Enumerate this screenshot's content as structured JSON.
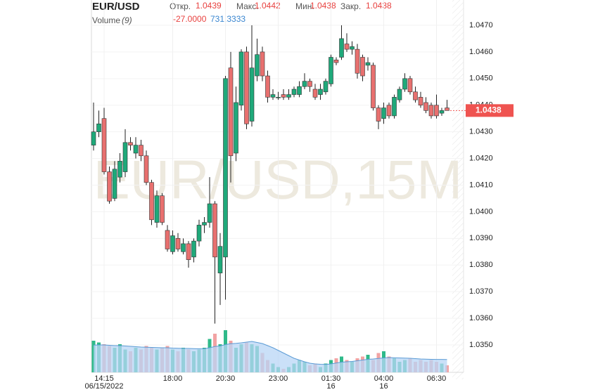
{
  "chart_data": {
    "type": "candlestick",
    "title": "EUR/USD",
    "legend": [
      {
        "label": "Откр.",
        "value": "1.0439"
      },
      {
        "label": "Макс.",
        "value": "1.0442"
      },
      {
        "label": "Мин.",
        "value": "1.0438"
      },
      {
        "label": "Закр.",
        "value": "1.0438"
      }
    ],
    "volume_legend": {
      "label": "Volume",
      "period": "(9)",
      "values": [
        "-27.0000",
        "731.3333"
      ]
    },
    "watermark": "EUR/USD,15M",
    "up_color": "#1fa97a",
    "down_color": "#e8706f",
    "volume_up_color": "#2fba8a",
    "volume_down_color": "#f2a3a3",
    "volume_ma_color": "#5b9bd5",
    "volume_ma_fill": "#b8d6f5",
    "open": [
      1.0425,
      1.043,
      1.0435,
      1.0415,
      1.0405,
      1.0413,
      1.0415,
      1.0426,
      1.0422,
      1.0425,
      1.0421,
      1.0411,
      1.0396,
      1.0406,
      1.0393,
      1.0385,
      1.039,
      1.0385,
      1.0388,
      1.0383,
      1.0389,
      1.0395,
      1.0396,
      1.0403,
      1.0377,
      1.0383,
      1.0454,
      1.0422,
      1.044,
      1.046,
      1.0434,
      1.0451,
      1.046,
      1.0451,
      1.0443,
      1.0443,
      1.0444,
      1.0443,
      1.0444,
      1.0444,
      1.0447,
      1.0449,
      1.0446,
      1.0444,
      1.0445,
      1.0448,
      1.0457,
      1.0458,
      1.0463,
      1.0461,
      1.0461,
      1.0458,
      1.0455,
      1.0455,
      1.0439,
      1.0435,
      1.044,
      1.0436,
      1.0442,
      1.0446,
      1.045,
      1.0445,
      1.0443,
      1.0441,
      1.044,
      1.044,
      1.0437,
      1.0439
    ],
    "high": [
      1.0441,
      1.0438,
      1.0439,
      1.0417,
      1.0419,
      1.0422,
      1.0431,
      1.0428,
      1.0428,
      1.0427,
      1.0423,
      1.0412,
      1.0408,
      1.0407,
      1.0395,
      1.0393,
      1.0392,
      1.039,
      1.0389,
      1.039,
      1.0397,
      1.0398,
      1.0413,
      1.0404,
      1.0392,
      1.0451,
      1.046,
      1.0447,
      1.0461,
      1.0462,
      1.047,
      1.0465,
      1.0462,
      1.0453,
      1.0446,
      1.0445,
      1.0446,
      1.0446,
      1.0447,
      1.0449,
      1.0452,
      1.045,
      1.0448,
      1.0448,
      1.045,
      1.0459,
      1.0458,
      1.047,
      1.0467,
      1.0464,
      1.0463,
      1.0459,
      1.0458,
      1.0456,
      1.044,
      1.0441,
      1.0441,
      1.0444,
      1.0447,
      1.0452,
      1.0451,
      1.0447,
      1.0445,
      1.0443,
      1.0441,
      1.0444,
      1.0439,
      1.0442
    ],
    "low": [
      1.0423,
      1.0428,
      1.0414,
      1.0403,
      1.0404,
      1.0411,
      1.0413,
      1.0423,
      1.042,
      1.0419,
      1.041,
      1.0395,
      1.0394,
      1.0395,
      1.0385,
      1.0384,
      1.0385,
      1.0384,
      1.0379,
      1.0381,
      1.0387,
      1.0392,
      1.0394,
      1.0358,
      1.0365,
      1.0367,
      1.0411,
      1.0419,
      1.0438,
      1.0431,
      1.0432,
      1.0449,
      1.0449,
      1.0441,
      1.0442,
      1.0442,
      1.0442,
      1.0442,
      1.0443,
      1.0443,
      1.0446,
      1.0445,
      1.0442,
      1.0442,
      1.0444,
      1.0447,
      1.0455,
      1.0457,
      1.046,
      1.0459,
      1.045,
      1.0449,
      1.0453,
      1.0438,
      1.0431,
      1.0433,
      1.0435,
      1.0435,
      1.0441,
      1.0445,
      1.0444,
      1.0441,
      1.0439,
      1.0437,
      1.0435,
      1.0435,
      1.0436,
      1.0438
    ],
    "close": [
      1.043,
      1.0433,
      1.0415,
      1.0404,
      1.0416,
      1.0419,
      1.0426,
      1.0425,
      1.0425,
      1.0421,
      1.0411,
      1.0397,
      1.0406,
      1.0396,
      1.0386,
      1.0391,
      1.0386,
      1.0388,
      1.0382,
      1.0389,
      1.0395,
      1.0396,
      1.0403,
      1.0383,
      1.0387,
      1.045,
      1.0421,
      1.0441,
      1.046,
      1.0433,
      1.0454,
      1.0459,
      1.0451,
      1.0443,
      1.0444,
      1.0443,
      1.0443,
      1.0444,
      1.0446,
      1.0447,
      1.0449,
      1.0447,
      1.0443,
      1.0446,
      1.0449,
      1.0458,
      1.0456,
      1.0465,
      1.0461,
      1.0462,
      1.0452,
      1.0451,
      1.0456,
      1.0439,
      1.0434,
      1.0439,
      1.0436,
      1.0443,
      1.0446,
      1.045,
      1.0445,
      1.0442,
      1.044,
      1.0438,
      1.0436,
      1.0436,
      1.0438,
      1.0438
    ],
    "volume": [
      1800,
      1700,
      1600,
      1500,
      1400,
      1600,
      1300,
      1200,
      1400,
      1300,
      1500,
      1400,
      1300,
      1400,
      1500,
      1300,
      1200,
      1400,
      1300,
      1200,
      1300,
      1400,
      1900,
      2200,
      1600,
      2400,
      1800,
      1400,
      1600,
      1700,
      1600,
      1500,
      1100,
      700,
      500,
      300,
      200,
      300,
      500,
      700,
      600,
      400,
      500,
      300,
      500,
      700,
      800,
      900,
      700,
      600,
      800,
      900,
      1000,
      700,
      1100,
      1200,
      900,
      800,
      600,
      700,
      800,
      600,
      700,
      600,
      700,
      600,
      500,
      400
    ],
    "volume_ma": [
      1550,
      1560,
      1560,
      1540,
      1520,
      1520,
      1500,
      1480,
      1460,
      1440,
      1430,
      1420,
      1410,
      1400,
      1400,
      1380,
      1370,
      1360,
      1360,
      1350,
      1340,
      1340,
      1400,
      1470,
      1500,
      1580,
      1630,
      1650,
      1680,
      1720,
      1760,
      1700,
      1640,
      1520,
      1400,
      1250,
      1100,
      950,
      800,
      700,
      600,
      520,
      480,
      460,
      450,
      480,
      530,
      580,
      600,
      620,
      660,
      700,
      740,
      760,
      790,
      820,
      840,
      830,
      820,
      810,
      800,
      780,
      760,
      750,
      740,
      735,
      733,
      731.3333
    ],
    "volume_ylim": [
      0,
      2400
    ],
    "ylim": [
      1.035,
      1.047
    ],
    "yticks": [
      {
        "value": 1.047,
        "label": "1.0470"
      },
      {
        "value": 1.046,
        "label": "1.0460"
      },
      {
        "value": 1.045,
        "label": "1.0450"
      },
      {
        "value": 1.044,
        "label": "1.0440"
      },
      {
        "value": 1.043,
        "label": "1.0430"
      },
      {
        "value": 1.042,
        "label": "1.0420"
      },
      {
        "value": 1.041,
        "label": "1.0410"
      },
      {
        "value": 1.04,
        "label": "1.0400"
      },
      {
        "value": 1.039,
        "label": "1.0390"
      },
      {
        "value": 1.038,
        "label": "1.0380"
      },
      {
        "value": 1.037,
        "label": "1.0370"
      },
      {
        "value": 1.036,
        "label": "1.0360"
      },
      {
        "value": 1.035,
        "label": "1.0350"
      }
    ],
    "xticks": [
      {
        "value": 2,
        "label": "14:15",
        "sublabel": "06/15/2022"
      },
      {
        "value": 15,
        "label": "18:00"
      },
      {
        "value": 25,
        "label": "20:30"
      },
      {
        "value": 35,
        "label": "23:00"
      },
      {
        "value": 45,
        "label": "01:30",
        "sublabel": "16"
      },
      {
        "value": 55,
        "label": "04:00",
        "sublabel": "16"
      },
      {
        "value": 65,
        "label": "06:30"
      }
    ],
    "last_price": {
      "value": 1.0438,
      "label": "1.0438"
    },
    "last_price_color": "#ef5350",
    "grid": true
  }
}
